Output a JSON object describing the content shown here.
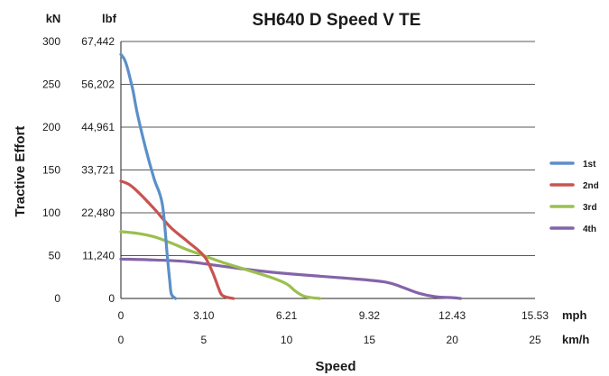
{
  "chart_data": {
    "type": "line",
    "title": "SH640 D Speed V TE",
    "ylabel": "Tractive Effort",
    "xlabel": "Speed",
    "y_unit_primary": "kN",
    "y_unit_secondary": "lbf",
    "x_unit_primary": "mph",
    "x_unit_secondary": "km/h",
    "ylim": [
      0,
      300
    ],
    "xlim": [
      0,
      25
    ],
    "y_ticks_kn": [
      "0",
      "50",
      "100",
      "150",
      "200",
      "250",
      "300"
    ],
    "y_ticks_lbf": [
      "0",
      "11,240",
      "22,480",
      "33,721",
      "44,961",
      "56,202",
      "67,442"
    ],
    "x_ticks_mph": [
      "0",
      "3.10",
      "6.21",
      "9.32",
      "12.43",
      "15.53"
    ],
    "x_ticks_kmh": [
      "0",
      "5",
      "10",
      "15",
      "20",
      "25"
    ],
    "grid": true,
    "legend_position": "right",
    "series": [
      {
        "name": "1st",
        "color": "#5b8fc9",
        "x": [
          0,
          0.3,
          0.7,
          1.0,
          1.5,
          2.0,
          2.5,
          2.8,
          2.95,
          3.05,
          3.3
        ],
        "y": [
          285,
          275,
          245,
          215,
          175,
          140,
          110,
          50,
          20,
          5,
          0
        ]
      },
      {
        "name": "2nd",
        "color": "#c9534f",
        "x": [
          0,
          0.5,
          1.0,
          2.0,
          3.0,
          4.0,
          5.0,
          5.5,
          5.9,
          6.1,
          6.5,
          6.8
        ],
        "y": [
          137,
          133,
          125,
          105,
          83,
          67,
          50,
          32,
          12,
          4,
          1,
          0
        ]
      },
      {
        "name": "3rd",
        "color": "#9bbf4e",
        "x": [
          0,
          1,
          2,
          3,
          4,
          5,
          6,
          7,
          8,
          9,
          10,
          10.5,
          11,
          11.5,
          12
        ],
        "y": [
          78,
          76,
          72,
          65,
          57,
          50,
          43,
          37,
          31,
          25,
          17,
          9,
          3,
          1,
          0
        ]
      },
      {
        "name": "4th",
        "color": "#8464a8",
        "x": [
          0,
          2,
          4,
          6,
          8,
          10,
          12,
          14,
          16,
          17,
          18,
          19,
          20,
          20.5
        ],
        "y": [
          46,
          45,
          43,
          38,
          33,
          29,
          26,
          23,
          19,
          13,
          6,
          2,
          1,
          0
        ]
      }
    ]
  }
}
